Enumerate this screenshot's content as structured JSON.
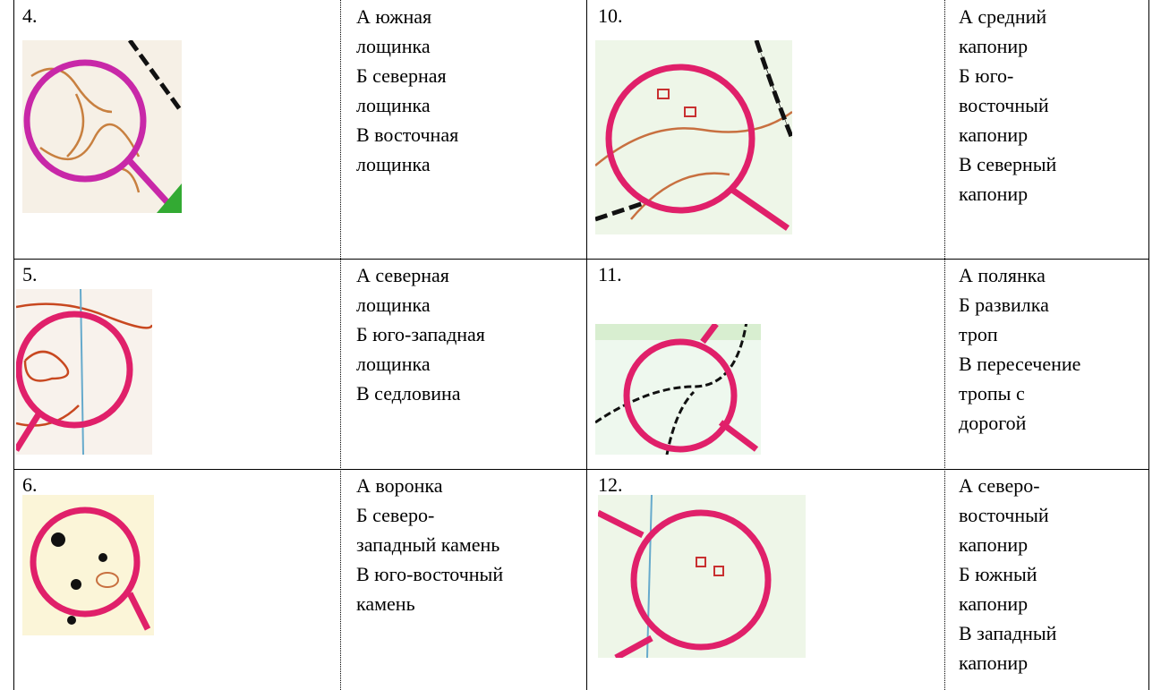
{
  "rows": [
    {
      "left": {
        "number": "4.",
        "options": [
          "А южная",
          "лощинка",
          "Б северная",
          "лощинка",
          "В восточная",
          "лощинка"
        ]
      },
      "right": {
        "number": "10.",
        "options": [
          "А средний",
          "капонир",
          "Б юго-",
          "восточный",
          "капонир",
          "В северный",
          "капонир"
        ]
      }
    },
    {
      "left": {
        "number": "5.",
        "options": [
          "А северная",
          "лощинка",
          "Б юго-западная",
          "лощинка",
          "В седловина"
        ]
      },
      "right": {
        "number": "11.",
        "options": [
          "А полянка",
          "Б развилка",
          "троп",
          "В пересечение",
          "тропы с",
          "дорогой"
        ]
      }
    },
    {
      "left": {
        "number": "6.",
        "options": [
          "А воронка",
          "Б северо-",
          "западный камень",
          "В юго-восточный",
          "камень"
        ]
      },
      "right": {
        "number": "12.",
        "options": [
          "А северо-",
          "восточный",
          "капонир",
          "Б южный",
          "капонир",
          "В западный",
          "капонир"
        ]
      }
    }
  ]
}
